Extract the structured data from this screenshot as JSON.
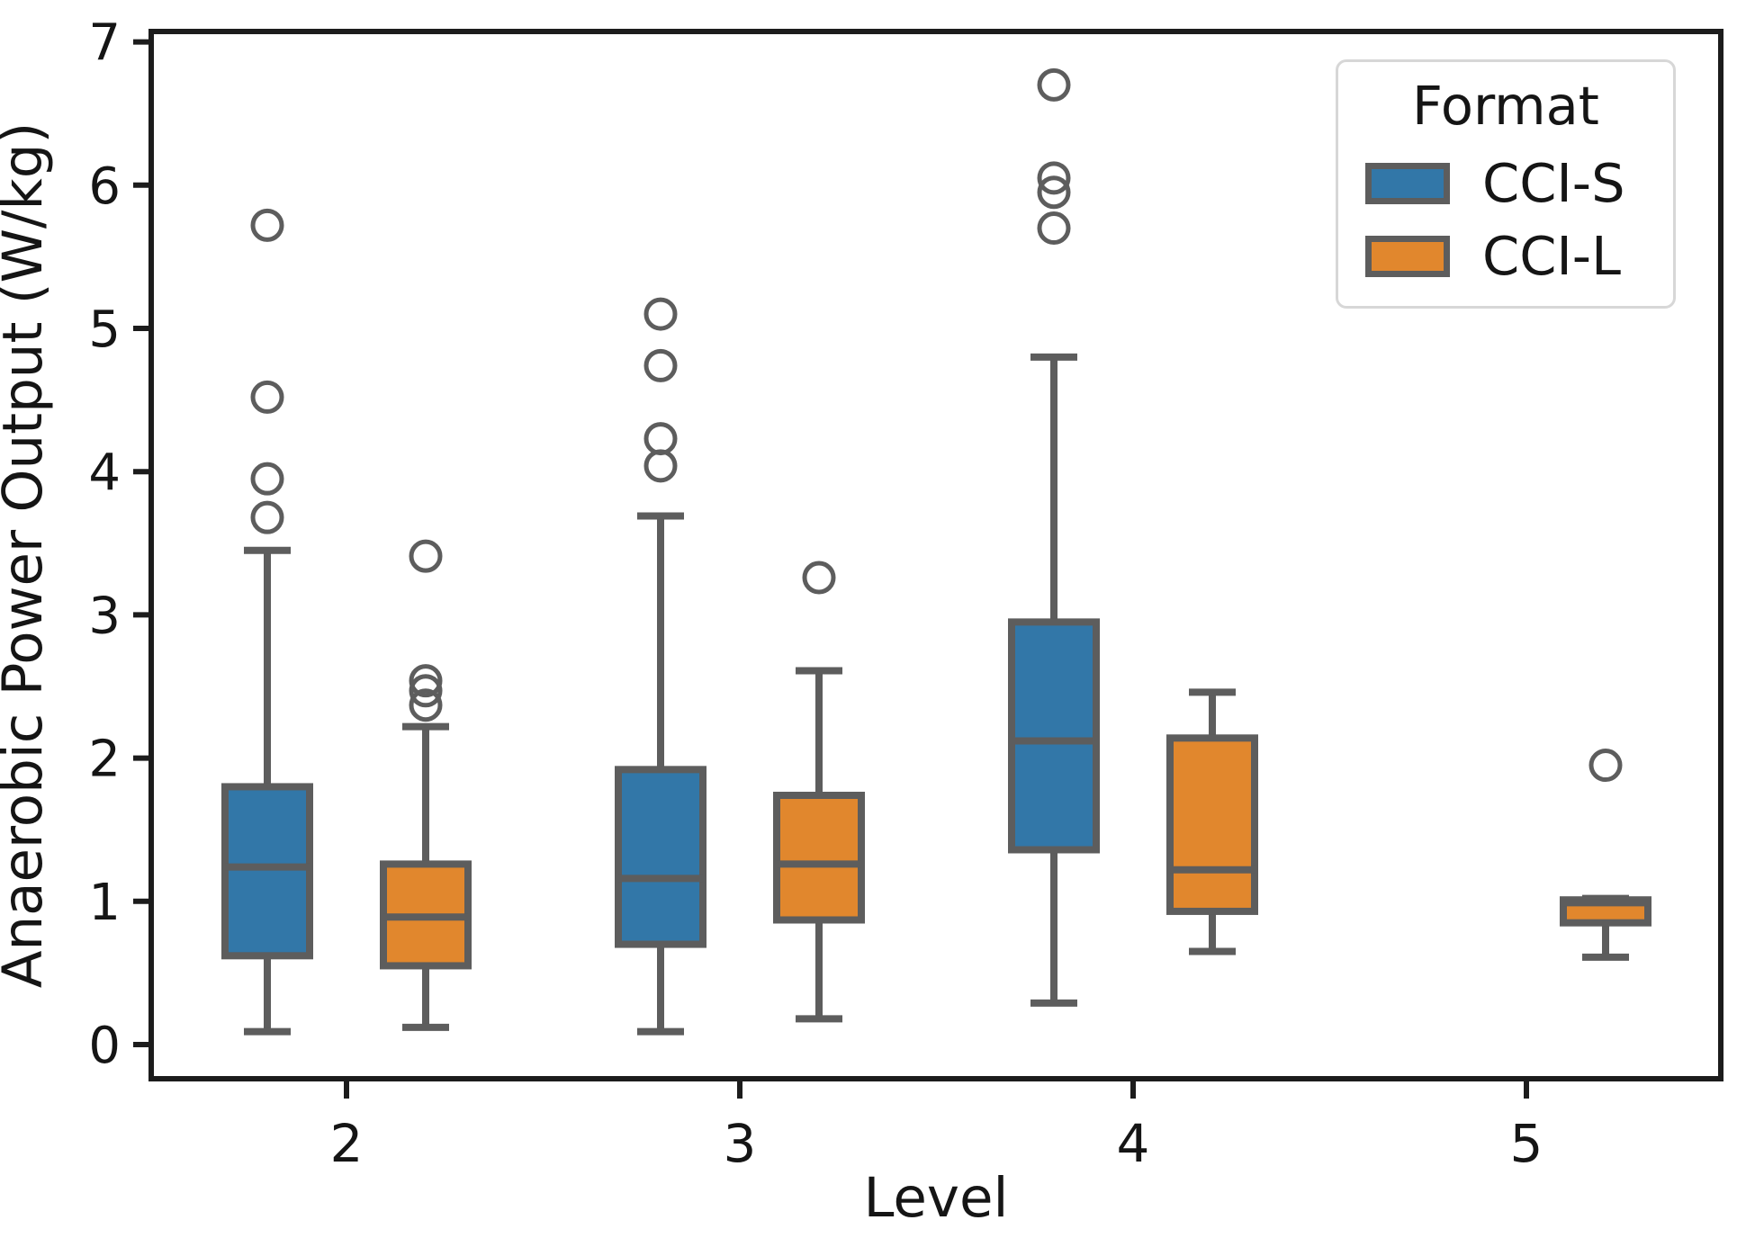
{
  "chart_data": {
    "type": "grouped_boxplot",
    "xlabel": "Level",
    "ylabel": "Anaerobic Power Output (W/kg)",
    "categories": [
      "2",
      "3",
      "4",
      "5"
    ],
    "yticks": [
      0,
      1,
      2,
      3,
      4,
      5,
      6,
      7
    ],
    "ylim": [
      -0.24,
      7.07
    ],
    "grid": false,
    "legend": {
      "title": "Format",
      "position": "upper right",
      "entries": [
        {
          "label": "CCI-S",
          "color": "#3277a8"
        },
        {
          "label": "CCI-L",
          "color": "#e1872d"
        }
      ]
    },
    "style": {
      "box_edge_color": "#5d5d5d",
      "spine_color": "#1c1c1c",
      "background": "#ffffff"
    },
    "series": [
      {
        "name": "CCI-S",
        "color": "#3277a8",
        "boxes": [
          {
            "category": "2",
            "whislo": 0.09,
            "q1": 0.62,
            "med": 1.24,
            "q3": 1.8,
            "whishi": 3.45,
            "fliers": [
              3.68,
              3.95,
              4.52,
              5.72
            ]
          },
          {
            "category": "3",
            "whislo": 0.09,
            "q1": 0.7,
            "med": 1.16,
            "q3": 1.92,
            "whishi": 3.69,
            "fliers": [
              4.04,
              4.23,
              4.74,
              5.1
            ]
          },
          {
            "category": "4",
            "whislo": 0.29,
            "q1": 1.36,
            "med": 2.12,
            "q3": 2.95,
            "whishi": 4.8,
            "fliers": [
              5.7,
              5.95,
              6.05,
              6.7
            ]
          },
          null
        ]
      },
      {
        "name": "CCI-L",
        "color": "#e1872d",
        "boxes": [
          {
            "category": "2",
            "whislo": 0.12,
            "q1": 0.55,
            "med": 0.89,
            "q3": 1.26,
            "whishi": 2.22,
            "fliers": [
              2.37,
              2.47,
              2.54,
              3.41
            ]
          },
          {
            "category": "3",
            "whislo": 0.18,
            "q1": 0.87,
            "med": 1.26,
            "q3": 1.74,
            "whishi": 2.61,
            "fliers": [
              3.26
            ]
          },
          {
            "category": "4",
            "whislo": 0.65,
            "q1": 0.93,
            "med": 1.22,
            "q3": 2.14,
            "whishi": 2.46,
            "fliers": []
          },
          {
            "category": "5",
            "whislo": 0.61,
            "q1": 0.85,
            "med": 0.99,
            "q3": 1.01,
            "whishi": 1.02,
            "fliers": [
              1.95
            ]
          }
        ]
      }
    ]
  }
}
